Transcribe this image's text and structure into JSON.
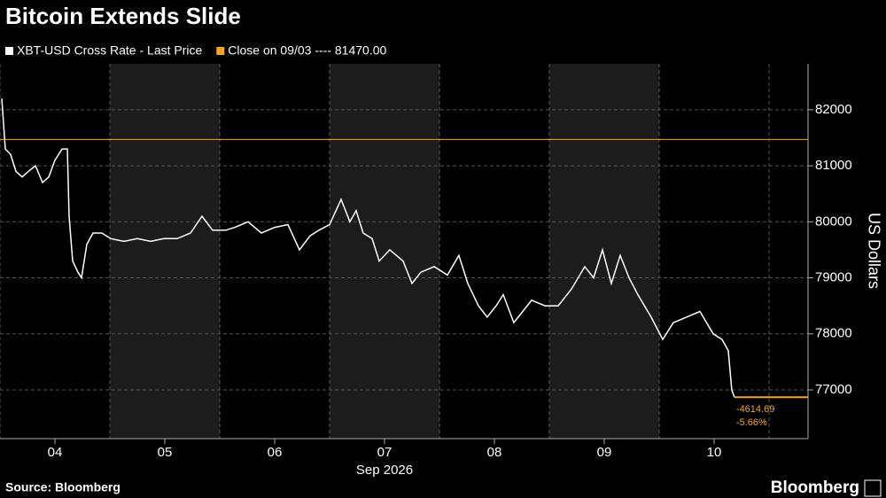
{
  "chart_data": {
    "type": "line",
    "title": "Bitcoin Extends Slide",
    "series": [
      {
        "name": "XBT-USD Cross Rate - Last Price",
        "color": "#ffffff",
        "x": [
          3.516,
          3.548,
          3.597,
          3.645,
          3.702,
          3.758,
          3.823,
          3.887,
          3.944,
          4.0,
          4.065,
          4.113,
          4.129,
          4.161,
          4.21,
          4.242,
          4.29,
          4.347,
          4.427,
          4.508,
          4.629,
          4.75,
          4.871,
          4.992,
          5.113,
          5.234,
          5.339,
          5.435,
          5.556,
          5.637,
          5.758,
          5.879,
          6.0,
          6.121,
          6.226,
          6.323,
          6.403,
          6.5,
          6.605,
          6.685,
          6.742,
          6.806,
          6.887,
          6.952,
          7.048,
          7.169,
          7.25,
          7.331,
          7.452,
          7.573,
          7.677,
          7.758,
          7.855,
          7.935,
          8.016,
          8.081,
          8.177,
          8.258,
          8.339,
          8.46,
          8.581,
          8.702,
          8.823,
          8.903,
          8.984,
          9.065,
          9.145,
          9.226,
          9.306,
          9.427,
          9.532,
          9.629,
          9.75,
          9.871,
          9.992,
          10.073,
          10.129,
          10.161,
          10.185
        ],
        "values": [
          82200,
          81300,
          81200,
          80900,
          80800,
          80900,
          81000,
          80700,
          80800,
          81100,
          81300,
          81300,
          80100,
          79300,
          79100,
          79000,
          79600,
          79800,
          79800,
          79700,
          79650,
          79700,
          79650,
          79700,
          79700,
          79800,
          80100,
          79850,
          79850,
          79900,
          80000,
          79800,
          79900,
          79950,
          79500,
          79750,
          79850,
          79950,
          80400,
          80000,
          80200,
          79800,
          79700,
          79300,
          79500,
          79300,
          78900,
          79100,
          79200,
          79050,
          79400,
          78900,
          78500,
          78300,
          78500,
          78700,
          78200,
          78400,
          78600,
          78500,
          78500,
          78800,
          79200,
          79000,
          79500,
          78900,
          79400,
          79000,
          78700,
          78300,
          77900,
          78200,
          78300,
          78400,
          78000,
          77900,
          77700,
          77000,
          76870
        ]
      },
      {
        "name": "Close on 09/03 ---- 81470.00",
        "color": "#f5a623",
        "reference": 81470
      }
    ],
    "annotations": [
      "-4614.69",
      "-5.66%"
    ],
    "xlim": [
      3.5,
      10.855
    ],
    "xticks": [
      {
        "value": 4,
        "label": "04"
      },
      {
        "value": 5,
        "label": "05"
      },
      {
        "value": 6,
        "label": "06"
      },
      {
        "value": 7,
        "label": "07"
      },
      {
        "value": 8,
        "label": "08"
      },
      {
        "value": 9,
        "label": "09"
      },
      {
        "value": 10,
        "label": "10"
      }
    ],
    "xlabel": "Sep 2026",
    "ylim": [
      76130,
      82820
    ],
    "yticks": [
      77000,
      78000,
      79000,
      80000,
      81000,
      82000
    ],
    "ylabel": "US Dollars",
    "grid": true,
    "source": "Source: Bloomberg",
    "brand": "Bloomberg"
  }
}
